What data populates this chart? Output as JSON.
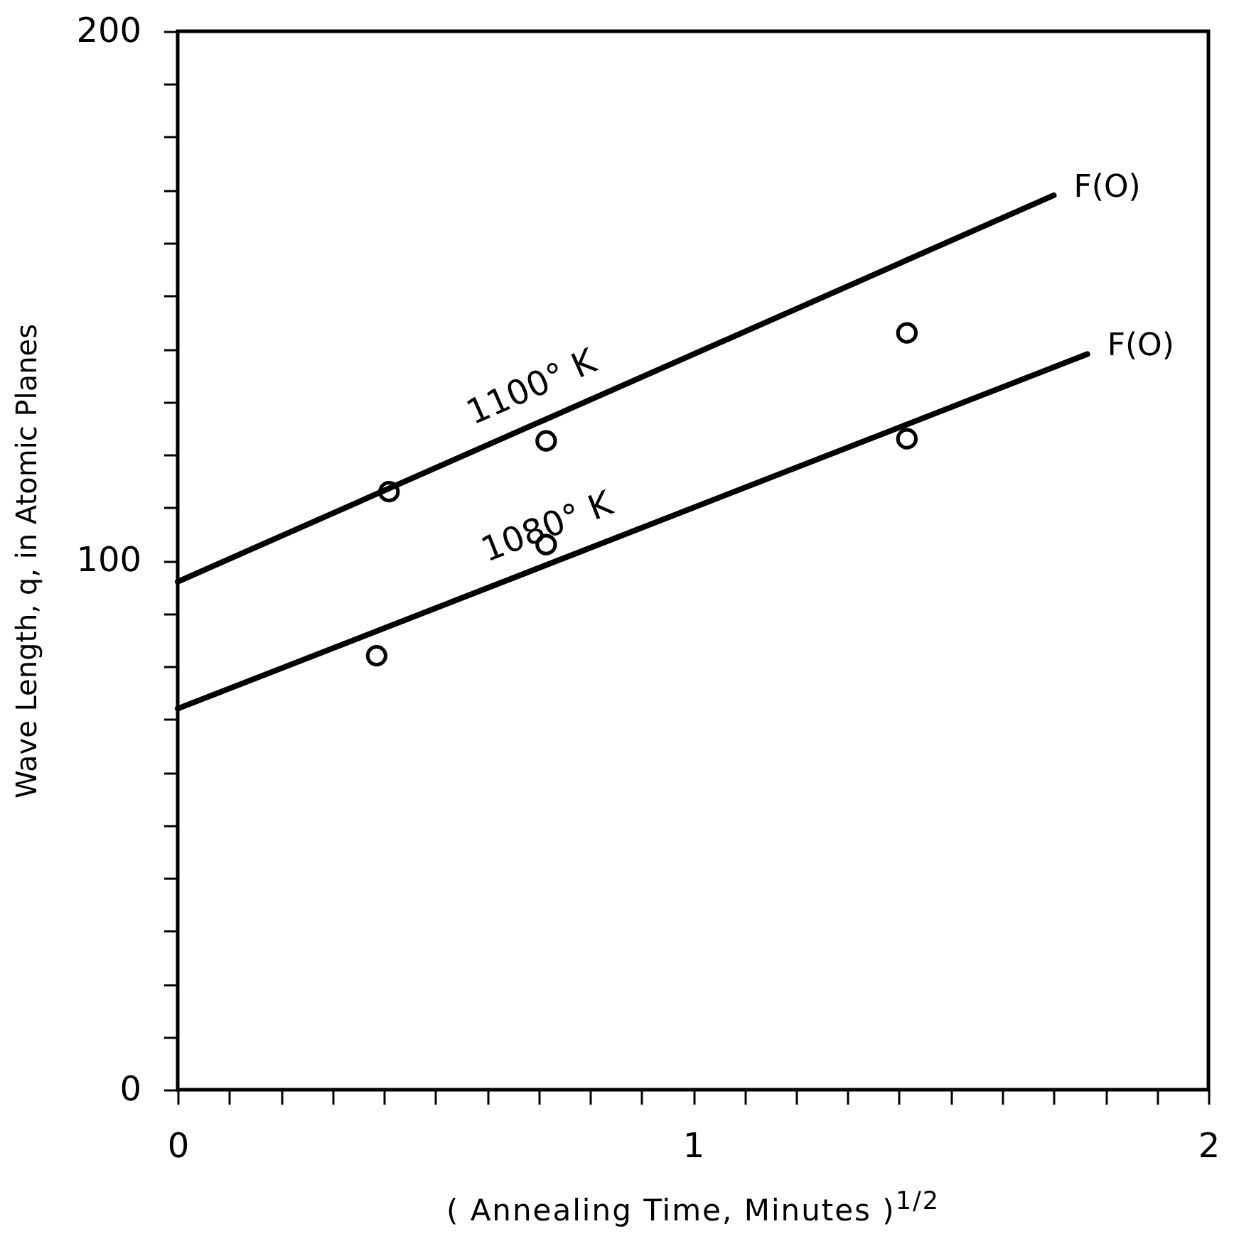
{
  "chart_data": {
    "type": "scatter",
    "xlabel": "( Annealing Time, Minutes )$^{1/2}$",
    "ylabel": "Wave Length, q, in Atomic Planes",
    "xlim": [
      0,
      2
    ],
    "ylim": [
      0,
      200
    ],
    "xticks": [
      0,
      {
        "value": 0.1,
        "label": null
      },
      {
        "value": 0.2,
        "label": null
      },
      {
        "value": 0.3,
        "label": null
      },
      {
        "value": 0.4,
        "label": null
      },
      {
        "value": 0.5,
        "label": null
      },
      {
        "value": 0.6,
        "label": null
      },
      {
        "value": 0.7,
        "label": null
      },
      {
        "value": 0.8,
        "label": null
      },
      {
        "value": 0.9,
        "label": null
      },
      1,
      {
        "value": 1.1,
        "label": null
      },
      {
        "value": 1.2,
        "label": null
      },
      {
        "value": 1.3,
        "label": null
      },
      {
        "value": 1.4,
        "label": null
      },
      {
        "value": 1.5,
        "label": null
      },
      {
        "value": 1.6,
        "label": null
      },
      {
        "value": 1.7,
        "label": null
      },
      {
        "value": 1.8,
        "label": null
      },
      {
        "value": 1.9,
        "label": null
      },
      2
    ],
    "yticks": [
      0,
      {
        "value": 10,
        "label": null
      },
      {
        "value": 20,
        "label": null
      },
      {
        "value": 30,
        "label": null
      },
      {
        "value": 40,
        "label": null
      },
      {
        "value": 50,
        "label": null
      },
      {
        "value": 60,
        "label": null
      },
      {
        "value": 70,
        "label": null
      },
      {
        "value": 80,
        "label": null
      },
      {
        "value": 90,
        "label": null
      },
      100,
      {
        "value": 110,
        "label": null
      },
      {
        "value": 120,
        "label": null
      },
      {
        "value": 130,
        "label": null
      },
      {
        "value": 140,
        "label": null
      },
      {
        "value": 150,
        "label": null
      },
      {
        "value": 160,
        "label": null
      },
      {
        "value": 170,
        "label": null
      },
      {
        "value": 180,
        "label": null
      },
      {
        "value": 190,
        "label": null
      },
      200
    ],
    "grid": false,
    "series": [
      {
        "name": "1100° K",
        "type": "line",
        "color": "#000000",
        "marker": "none",
        "x": [
          0,
          1.7
        ],
        "values": [
          96,
          169
        ]
      },
      {
        "name": "1080° K",
        "type": "line",
        "color": "#000000",
        "marker": "none",
        "x": [
          0,
          1.765
        ],
        "values": [
          72,
          139
        ]
      },
      {
        "color": "#000000",
        "marker": "circle",
        "x": [
          0.41,
          0.715,
          1.415
        ],
        "values": [
          113,
          122.6,
          143
        ]
      },
      {
        "color": "#000000",
        "marker": "circle",
        "x": [
          0.386,
          0.715,
          1.415
        ],
        "values": [
          82,
          103,
          123
        ]
      }
    ],
    "annotations": [
      {
        "text": "F(O)",
        "x": 1.7,
        "y": 169
      },
      {
        "text": "F(O)",
        "x": 1.765,
        "y": 139
      }
    ]
  }
}
